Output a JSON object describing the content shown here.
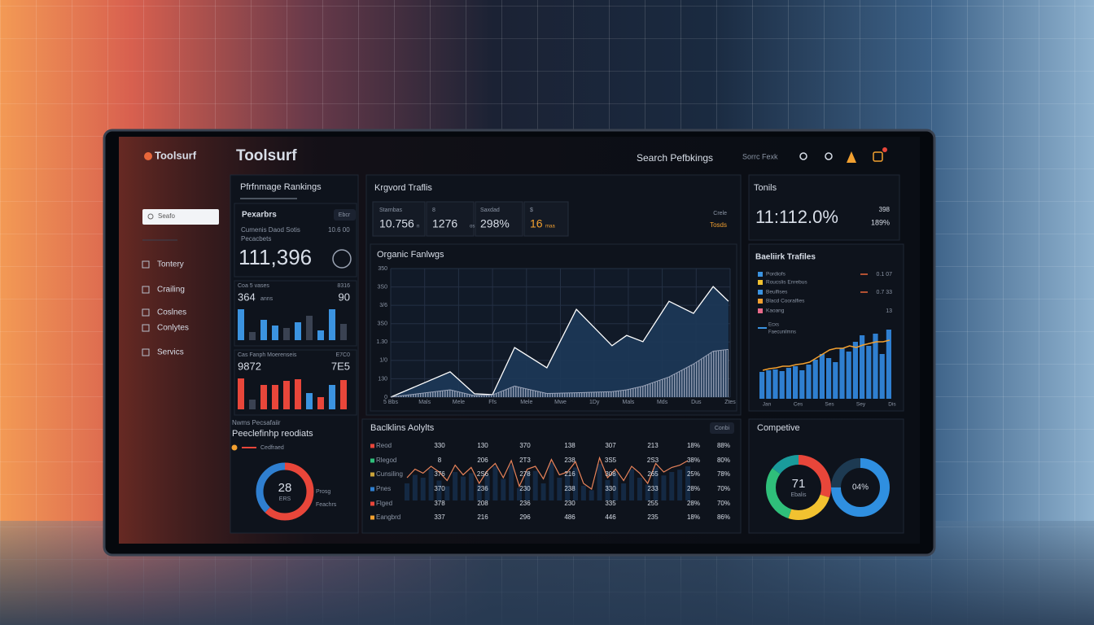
{
  "header": {
    "brand": "Toolsurf",
    "title": "Toolsurf",
    "search_label": "Search Pefbkings",
    "search_placeholder": "Sorrc Fexk"
  },
  "sidebar": {
    "search": "Seafo",
    "nav": [
      "Tontery",
      "Crailing",
      "Coslnes",
      "Conlytes",
      "Servics"
    ]
  },
  "performance": {
    "title": "Pfrfnmage Rankings",
    "card": {
      "label": "Pexarbrs",
      "badge": "Ebcr",
      "subtitle": [
        "Cumenis Daod Sotis",
        "Pecacbets"
      ],
      "note": "10.6 00",
      "value": "111,396"
    },
    "mini_charts": [
      {
        "label": "Coa 5 vases",
        "note": "8316",
        "value": "364",
        "unit": "anns",
        "side": "90",
        "ylim": [
          0,
          40
        ],
        "values": [
          38,
          10,
          25,
          18,
          15,
          22,
          30,
          12,
          38,
          20
        ],
        "colors": [
          "#3b93e0",
          "#3a4252",
          "#3b93e0",
          "#3b93e0",
          "#3a4252",
          "#3b93e0",
          "#3a4252",
          "#3b93e0",
          "#3b93e0",
          "#3a4252"
        ]
      },
      {
        "label": "Cas Fanph Moerenseis",
        "note": "E7C0",
        "value": "9872",
        "side": "7E5",
        "ylim": [
          0,
          40
        ],
        "values": [
          38,
          12,
          30,
          30,
          35,
          37,
          20,
          15,
          30,
          36
        ],
        "colors": [
          "#e8463a",
          "#3a4252",
          "#e8463a",
          "#e8463a",
          "#e8463a",
          "#e8463a",
          "#3b93e0",
          "#e8463a",
          "#3b93e0",
          "#e8463a"
        ]
      }
    ],
    "results": {
      "kicker": "Nwms Pecsafaiir",
      "title": "Peeclefinhp reodiats",
      "legend": "Cedfraed",
      "side": [
        "Prosg",
        "Feachrs"
      ],
      "donut": {
        "values": [
          62,
          38
        ],
        "colors": [
          "#e8463a",
          "#2f7fd0"
        ],
        "center": "28",
        "caption": "ERS"
      }
    }
  },
  "keyword": {
    "title": "Krgvord Traflis",
    "stats": [
      {
        "label": "Starnbas",
        "value": "10.756",
        "unit": "n"
      },
      {
        "label": "8",
        "value": "1276",
        "unit": "os"
      },
      {
        "label": "Saxdad",
        "value": "298%"
      },
      {
        "label": "$",
        "value": "16",
        "unit": "maa"
      }
    ],
    "side": [
      "Crele",
      "Tosds"
    ]
  },
  "organic": {
    "type": "line",
    "title": "Organic Fanlwgs",
    "xlim": [
      0,
      10
    ],
    "ylim": [
      0,
      350
    ],
    "xticks": [
      {
        "value": 0,
        "label": "5 Bbs"
      },
      {
        "value": 1,
        "label": "Mals"
      },
      {
        "value": 2,
        "label": "Mele"
      },
      {
        "value": 3,
        "label": "Ffs"
      },
      {
        "value": 4,
        "label": "Mele"
      },
      {
        "value": 5,
        "label": "Mwe"
      },
      {
        "value": 6,
        "label": "1Dy"
      },
      {
        "value": 7,
        "label": "Mals"
      },
      {
        "value": 8,
        "label": "Mds"
      },
      {
        "value": 9,
        "label": "Dus"
      },
      {
        "value": 10,
        "label": "Ztes"
      }
    ],
    "yticks": [
      0,
      {
        "value": 50,
        "label": "130"
      },
      {
        "value": 100,
        "label": "1/0"
      },
      {
        "value": 150,
        "label": "1.30"
      },
      {
        "value": 200,
        "label": "3S0"
      },
      {
        "value": 250,
        "label": "3/6"
      },
      {
        "value": 300,
        "label": "3S0"
      },
      350
    ],
    "x": [
      0,
      1.75,
      2.47,
      3.0,
      3.65,
      4.6,
      5.47,
      6.52,
      6.95,
      7.43,
      8.2,
      8.92,
      9.5,
      9.95
    ],
    "series": [
      {
        "color": "#ffffff",
        "fill": "#1d3858",
        "values": [
          0,
          69,
          9,
          7,
          135,
          80,
          239,
          140,
          168,
          151,
          261,
          228,
          301,
          261
        ]
      },
      {
        "color": "#9aa3b8",
        "fill": "#6c7590",
        "values": [
          0,
          20,
          4,
          6,
          30,
          10,
          12,
          15,
          20,
          30,
          55,
          90,
          125,
          130
        ]
      }
    ]
  },
  "backlinks": {
    "title": "Baclklins Aolylts",
    "badge": "Conbi",
    "rows": [
      [
        "Reod",
        "330",
        "130",
        "370",
        "138",
        "307",
        "213",
        "18%",
        "88%"
      ],
      [
        "Rlegod",
        "8",
        "206",
        "2T3",
        "238",
        "3S5",
        "2S3",
        "38%",
        "80%"
      ],
      [
        "Cunsiling",
        "376",
        "2S6",
        "278",
        "216",
        "308",
        "265",
        "25%",
        "78%"
      ],
      [
        "Pnes",
        "370",
        "236",
        "230",
        "238",
        "330",
        "233",
        "28%",
        "70%"
      ],
      [
        "Flged",
        "378",
        "208",
        "236",
        "230",
        "335",
        "255",
        "28%",
        "70%"
      ],
      [
        "Eangbrd",
        "337",
        "216",
        "296",
        "486",
        "446",
        "235",
        "18%",
        "86%"
      ]
    ],
    "row_colors": [
      "#e8463a",
      "#2fbf7a",
      "#c9a33a",
      "#2f7fd0",
      "#e8463a",
      "#f2a030"
    ],
    "ylim": [
      0,
      100
    ],
    "trend": [
      40,
      55,
      48,
      60,
      50,
      35,
      62,
      45,
      58,
      30,
      52,
      65,
      40,
      70,
      25,
      55,
      60,
      38,
      72,
      45,
      50,
      68,
      30,
      20,
      75,
      40,
      55,
      35,
      60,
      48,
      30,
      65,
      50,
      58,
      62,
      70
    ],
    "volume": [
      30,
      45,
      40,
      55,
      35,
      25,
      50,
      42,
      48,
      28,
      44,
      60,
      38,
      62,
      22,
      50,
      52,
      30,
      66,
      40,
      45,
      58,
      26,
      18,
      64,
      36,
      48,
      30,
      55,
      40,
      28,
      58,
      44,
      50,
      54,
      60
    ]
  },
  "totals": {
    "title": "Tonils",
    "value": "11:112.0%",
    "side": [
      "398",
      "189%"
    ]
  },
  "traffic": {
    "title": "Baeliirk Trafiles",
    "legend": [
      {
        "name": "Pordiofs",
        "color": "#3b93e0"
      },
      {
        "name": "Roucslis Enrebus",
        "color": "#f2c230"
      },
      {
        "name": "Beulfises",
        "color": "#3b93e0"
      },
      {
        "name": "Blacd Cooralfies",
        "color": "#f2a030"
      },
      {
        "name": "Kaoang",
        "color": "#e86a8a"
      }
    ],
    "side": [
      "0.1 07",
      "0.7 33",
      "13"
    ],
    "caption": [
      "Ecxs",
      "Faecunilmns"
    ],
    "categories": [
      "Jan",
      "Ces",
      "Ses",
      "Sey",
      "Dis"
    ],
    "ylim": [
      0,
      100
    ],
    "bars": [
      33,
      35,
      36,
      34,
      38,
      40,
      35,
      42,
      48,
      55,
      50,
      45,
      62,
      58,
      70,
      78,
      65,
      80,
      55,
      85
    ],
    "bar_color": "#2f7fd0",
    "line": [
      35,
      37,
      38,
      40,
      40,
      42,
      43,
      45,
      50,
      55,
      60,
      62,
      62,
      65,
      63,
      66,
      68,
      70,
      70,
      72
    ],
    "line_color": "#f2a030"
  },
  "competitive": {
    "title": "Competive",
    "donuts": [
      {
        "values": [
          30,
          25,
          30,
          15
        ],
        "colors": [
          "#e8463a",
          "#f2c230",
          "#2fbf7a",
          "#1a9b9b"
        ],
        "center": "71",
        "caption": "Ebalis"
      },
      {
        "values": [
          75,
          25
        ],
        "colors": [
          "#2f8fe0",
          "#1d3a52"
        ],
        "center": "04%"
      }
    ]
  }
}
